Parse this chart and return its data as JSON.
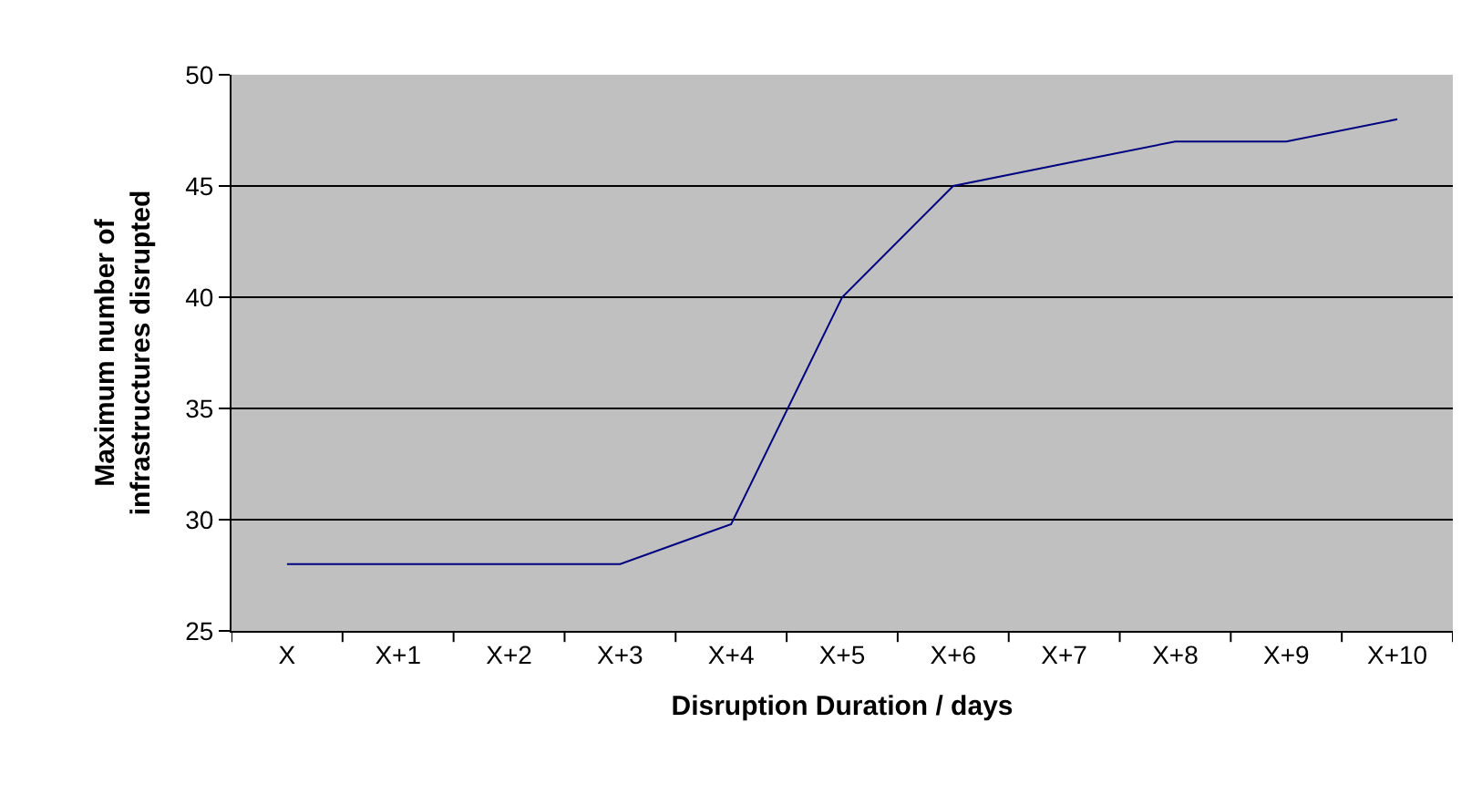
{
  "chart_data": {
    "type": "line",
    "xlabel": "Disruption Duration / days",
    "ylabel": "Maximum number of\ninfrastructures disrupted",
    "categories": [
      "X",
      "X+1",
      "X+2",
      "X+3",
      "X+4",
      "X+5",
      "X+6",
      "X+7",
      "X+8",
      "X+9",
      "X+10"
    ],
    "series": [
      {
        "color": "#000080",
        "values": [
          28,
          28,
          28,
          28,
          29.8,
          40,
          45,
          46,
          47,
          47,
          48
        ]
      }
    ],
    "ylim": [
      25,
      50
    ],
    "yticks": [
      25,
      30,
      35,
      40,
      45,
      50
    ],
    "grid": "y",
    "marker": "none",
    "line_style": "solid"
  }
}
